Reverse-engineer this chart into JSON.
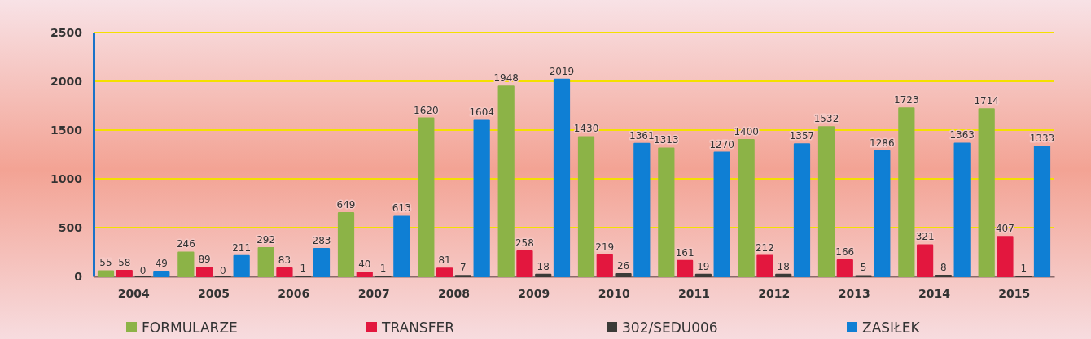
{
  "chart_data": {
    "type": "bar",
    "categories": [
      "2004",
      "2005",
      "2006",
      "2007",
      "2008",
      "2009",
      "2010",
      "2011",
      "2012",
      "2013",
      "2014",
      "2015"
    ],
    "series": [
      {
        "name": "FORMULARZE",
        "color": "#8cb347",
        "values": [
          55,
          246,
          292,
          649,
          1620,
          1948,
          1430,
          1313,
          1400,
          1532,
          1723,
          1714
        ]
      },
      {
        "name": "TRANSFER",
        "color": "#e3173e",
        "values": [
          58,
          89,
          83,
          40,
          81,
          258,
          219,
          161,
          212,
          166,
          321,
          407
        ]
      },
      {
        "name": "302/SEDU006",
        "color": "#3b3b38",
        "values": [
          0,
          0,
          1,
          1,
          7,
          18,
          26,
          19,
          18,
          5,
          8,
          1
        ]
      },
      {
        "name": "ZASIŁEK",
        "color": "#0f7fd4",
        "values": [
          49,
          211,
          283,
          613,
          1604,
          2019,
          1361,
          1270,
          1357,
          1286,
          1363,
          1333
        ]
      }
    ],
    "ylim": [
      0,
      2500
    ],
    "yticks": [
      0,
      500,
      1000,
      1500,
      2000,
      2500
    ],
    "grid": "y",
    "legend": "bottom",
    "data_labels": true
  }
}
